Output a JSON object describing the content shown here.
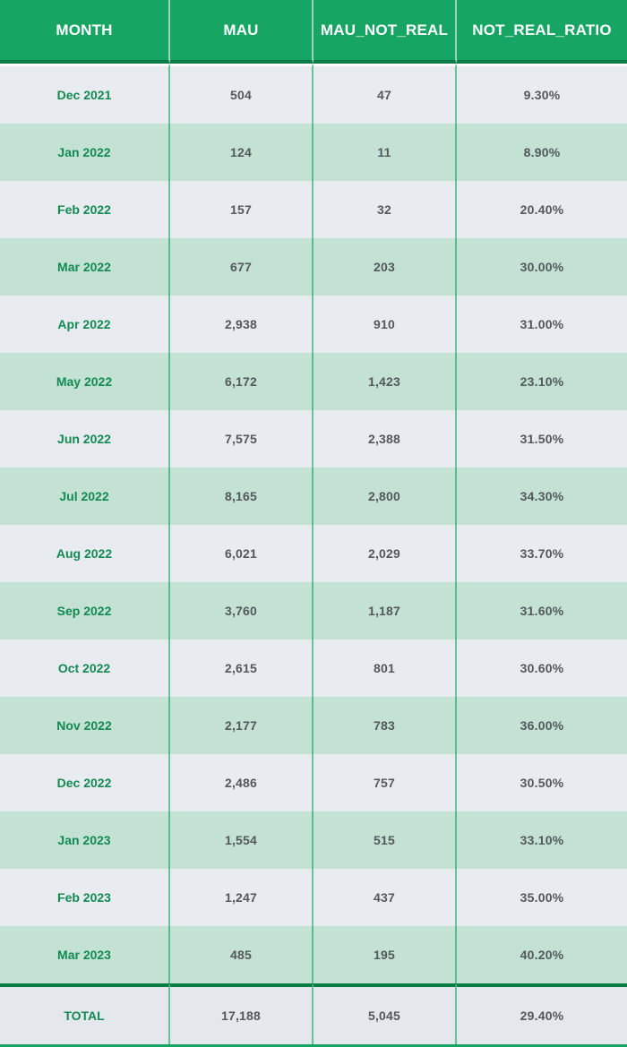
{
  "table": {
    "columns": [
      "MONTH",
      "MAU",
      "MAU_NOT_REAL",
      "NOT_REAL_RATIO"
    ],
    "rows": [
      {
        "month": "Dec 2021",
        "mau": "504",
        "mau_not_real": "47",
        "not_real_ratio": "9.30%"
      },
      {
        "month": "Jan 2022",
        "mau": "124",
        "mau_not_real": "11",
        "not_real_ratio": "8.90%"
      },
      {
        "month": "Feb 2022",
        "mau": "157",
        "mau_not_real": "32",
        "not_real_ratio": "20.40%"
      },
      {
        "month": "Mar 2022",
        "mau": "677",
        "mau_not_real": "203",
        "not_real_ratio": "30.00%"
      },
      {
        "month": "Apr 2022",
        "mau": "2,938",
        "mau_not_real": "910",
        "not_real_ratio": "31.00%"
      },
      {
        "month": "May 2022",
        "mau": "6,172",
        "mau_not_real": "1,423",
        "not_real_ratio": "23.10%"
      },
      {
        "month": "Jun 2022",
        "mau": "7,575",
        "mau_not_real": "2,388",
        "not_real_ratio": "31.50%"
      },
      {
        "month": "Jul 2022",
        "mau": "8,165",
        "mau_not_real": "2,800",
        "not_real_ratio": "34.30%"
      },
      {
        "month": "Aug 2022",
        "mau": "6,021",
        "mau_not_real": "2,029",
        "not_real_ratio": "33.70%"
      },
      {
        "month": "Sep 2022",
        "mau": "3,760",
        "mau_not_real": "1,187",
        "not_real_ratio": "31.60%"
      },
      {
        "month": "Oct 2022",
        "mau": "2,615",
        "mau_not_real": "801",
        "not_real_ratio": "30.60%"
      },
      {
        "month": "Nov 2022",
        "mau": "2,177",
        "mau_not_real": "783",
        "not_real_ratio": "36.00%"
      },
      {
        "month": "Dec 2022",
        "mau": "2,486",
        "mau_not_real": "757",
        "not_real_ratio": "30.50%"
      },
      {
        "month": "Jan 2023",
        "mau": "1,554",
        "mau_not_real": "515",
        "not_real_ratio": "33.10%"
      },
      {
        "month": "Feb 2023",
        "mau": "1,247",
        "mau_not_real": "437",
        "not_real_ratio": "35.00%"
      },
      {
        "month": "Mar 2023",
        "mau": "485",
        "mau_not_real": "195",
        "not_real_ratio": "40.20%"
      }
    ],
    "total": {
      "label": "TOTAL",
      "mau": "17,188",
      "mau_not_real": "5,045",
      "not_real_ratio": "29.40%"
    }
  },
  "colors": {
    "header_bg": "#17a563",
    "header_border": "#0b7c45",
    "row_gray": "#e8ebef",
    "row_green": "#c3e2d3",
    "total_bg": "#e4e8ed",
    "month_text": "#128a52",
    "value_text": "#54585d"
  },
  "chart_data": {
    "type": "table",
    "title": "",
    "columns": [
      "MONTH",
      "MAU",
      "MAU_NOT_REAL",
      "NOT_REAL_RATIO"
    ],
    "categories": [
      "Dec 2021",
      "Jan 2022",
      "Feb 2022",
      "Mar 2022",
      "Apr 2022",
      "May 2022",
      "Jun 2022",
      "Jul 2022",
      "Aug 2022",
      "Sep 2022",
      "Oct 2022",
      "Nov 2022",
      "Dec 2022",
      "Jan 2023",
      "Feb 2023",
      "Mar 2023"
    ],
    "series": [
      {
        "name": "MAU",
        "values": [
          504,
          124,
          157,
          677,
          2938,
          6172,
          7575,
          8165,
          6021,
          3760,
          2615,
          2177,
          2486,
          1554,
          1247,
          485
        ]
      },
      {
        "name": "MAU_NOT_REAL",
        "values": [
          47,
          11,
          32,
          203,
          910,
          1423,
          2388,
          2800,
          2029,
          1187,
          801,
          783,
          757,
          515,
          437,
          195
        ]
      },
      {
        "name": "NOT_REAL_RATIO_PERCENT",
        "values": [
          9.3,
          8.9,
          20.4,
          30.0,
          31.0,
          23.1,
          31.5,
          34.3,
          33.7,
          31.6,
          30.6,
          36.0,
          30.5,
          33.1,
          35.0,
          40.2
        ]
      }
    ],
    "total": {
      "MAU": 17188,
      "MAU_NOT_REAL": 5045,
      "NOT_REAL_RATIO_PERCENT": 29.4
    }
  }
}
